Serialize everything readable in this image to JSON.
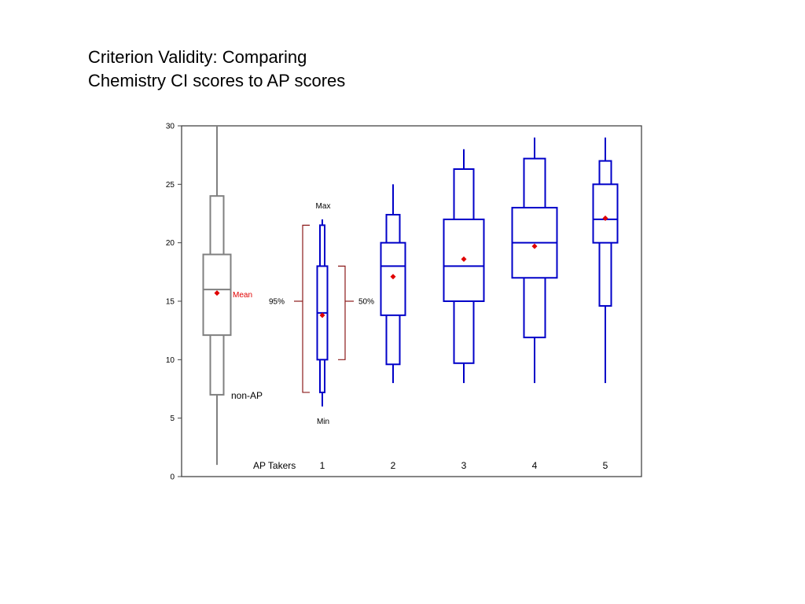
{
  "title_line1": "Criterion Validity: Comparing",
  "title_line2": "Chemistry CI scores to AP scores",
  "chart_data": {
    "type": "box",
    "ylim": [
      0,
      30
    ],
    "y_ticks": [
      "0",
      "5",
      "10",
      "15",
      "20",
      "25",
      "30"
    ],
    "x_row_label": "AP Takers",
    "groups": [
      {
        "label": "non-AP",
        "color": "#808080",
        "min": 1,
        "p2_5": 7,
        "q1": 12.1,
        "median": 16,
        "q3": 19,
        "p97_5": 24,
        "max": 30,
        "mean": 15.7
      },
      {
        "label": "1",
        "color": "#0000c8",
        "min": 6,
        "p2_5": 7.2,
        "q1": 10,
        "median": 14,
        "q3": 18,
        "p97_5": 21.5,
        "max": 22,
        "mean": 13.8
      },
      {
        "label": "2",
        "color": "#0000c8",
        "min": 8,
        "p2_5": 9.6,
        "q1": 13.8,
        "median": 18,
        "q3": 20,
        "p97_5": 22.4,
        "max": 25,
        "mean": 17.1
      },
      {
        "label": "3",
        "color": "#0000c8",
        "min": 8,
        "p2_5": 9.7,
        "q1": 15,
        "median": 18,
        "q3": 22,
        "p97_5": 26.3,
        "max": 28,
        "mean": 18.6
      },
      {
        "label": "4",
        "color": "#0000c8",
        "min": 8,
        "p2_5": 11.9,
        "q1": 17,
        "median": 20,
        "q3": 23,
        "p97_5": 27.2,
        "max": 29,
        "mean": 19.7
      },
      {
        "label": "5",
        "color": "#0000c8",
        "min": 8,
        "p2_5": 14.6,
        "q1": 20,
        "median": 22,
        "q3": 25,
        "p97_5": 27,
        "max": 29,
        "mean": 22.1
      }
    ],
    "annotations": {
      "max_label": "Max",
      "min_label": "Min",
      "mean_label": "Mean",
      "pct95_label": "95%",
      "pct50_label": "50%",
      "nonap_label": "non-AP"
    },
    "mean_color": "#e00000",
    "bracket_color": "#8b1a1a"
  }
}
